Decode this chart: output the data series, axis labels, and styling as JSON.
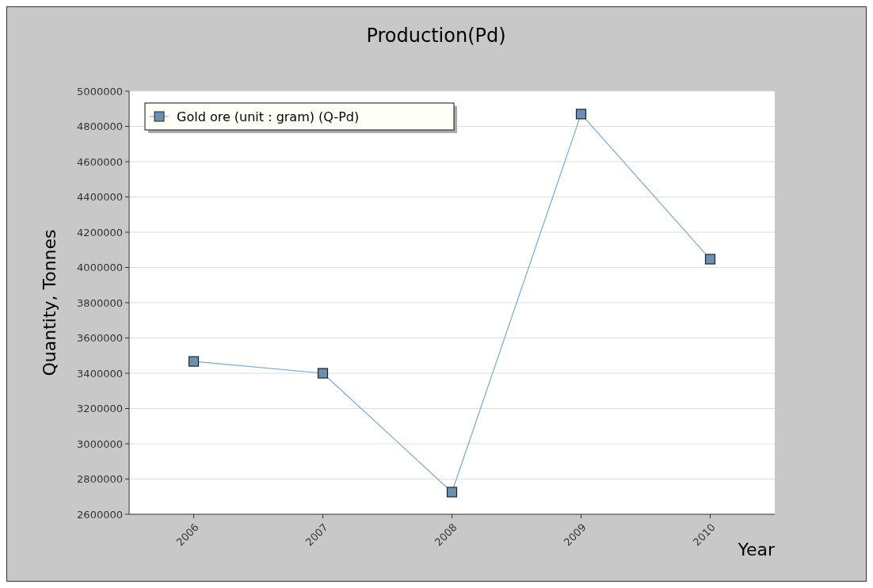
{
  "chart_data": {
    "type": "line",
    "title": "Production(Pd)",
    "xlabel": "Year",
    "ylabel": "Quantity, Tonnes",
    "categories": [
      "2006",
      "2007",
      "2008",
      "2009",
      "2010"
    ],
    "series": [
      {
        "name": "Gold ore (unit : gram) (Q-Pd)",
        "color": "#7aa6d0",
        "values": [
          3467000,
          3400000,
          2726000,
          4870000,
          4047000
        ]
      }
    ],
    "ylim": [
      2600000,
      5000000
    ],
    "yticks": [
      2600000,
      2800000,
      3000000,
      3200000,
      3400000,
      3600000,
      3800000,
      4000000,
      4200000,
      4400000,
      4600000,
      4800000,
      5000000
    ],
    "grid": "y",
    "legend": "top left",
    "marker": "square",
    "line_style": "solid"
  }
}
